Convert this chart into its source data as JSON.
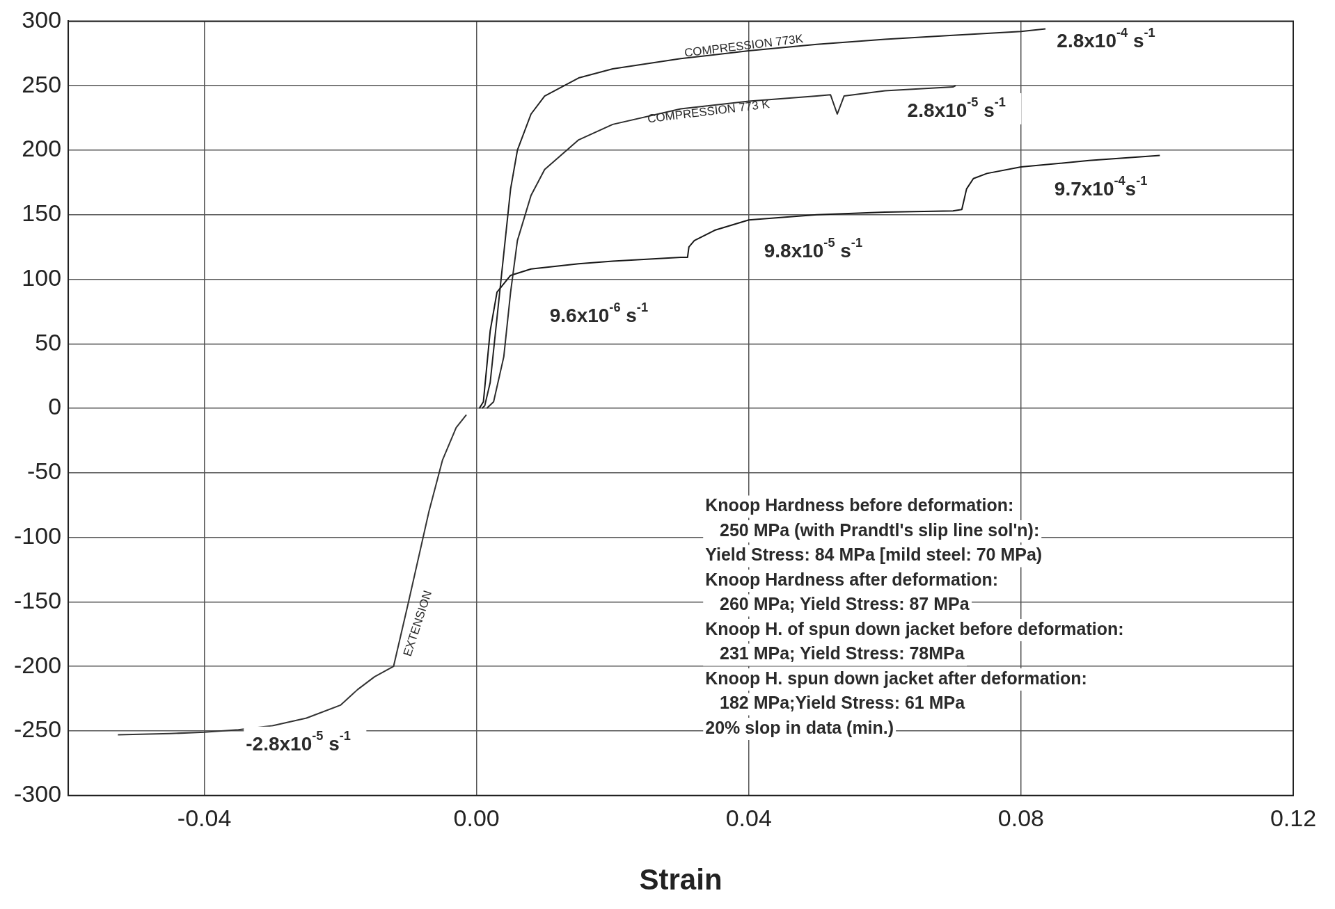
{
  "chart_data": {
    "type": "line",
    "xlabel": "Strain",
    "xlim": [
      -0.06,
      0.12
    ],
    "xticks": [
      {
        "value": -0.04,
        "label": "-0.04"
      },
      {
        "value": 0,
        "label": "0.00"
      },
      {
        "value": 0.04,
        "label": "0.04"
      },
      {
        "value": 0.08,
        "label": "0.08"
      },
      {
        "value": 0.12,
        "label": "0.12"
      }
    ],
    "ylim": [
      -300,
      300
    ],
    "yticks": [
      -300,
      -250,
      -200,
      -150,
      -100,
      -50,
      0,
      50,
      100,
      150,
      200,
      250,
      300
    ],
    "grid": true,
    "legend": false,
    "marker": "none",
    "line_style": "solid",
    "series": [
      {
        "color": "#222222",
        "x": [
          0.0008,
          0.0012,
          0.002,
          0.003,
          0.004,
          0.005,
          0.006,
          0.008,
          0.01,
          0.015,
          0.02,
          0.03,
          0.04,
          0.05,
          0.06,
          0.07,
          0.08,
          0.0836
        ],
        "values": [
          0,
          2,
          20,
          70,
          120,
          170,
          200,
          228,
          242,
          256,
          263,
          271,
          277,
          282,
          286,
          289,
          292,
          294
        ]
      },
      {
        "color": "#2c2c2c",
        "x": [
          0.0015,
          0.0025,
          0.004,
          0.005,
          0.006,
          0.008,
          0.01,
          0.015,
          0.02,
          0.03,
          0.04,
          0.05,
          0.052,
          0.053,
          0.054,
          0.06,
          0.07,
          0.0704
        ],
        "values": [
          0,
          5,
          40,
          90,
          130,
          165,
          185,
          208,
          220,
          232,
          238,
          242,
          243,
          228,
          242,
          246,
          249,
          250
        ]
      },
      {
        "color": "#181818",
        "x": [
          0.0004,
          0.001,
          0.002,
          0.003,
          0.005,
          0.008,
          0.015,
          0.02,
          0.03,
          0.031,
          0.0312,
          0.032,
          0.035,
          0.04,
          0.05,
          0.06,
          0.07,
          0.0713,
          0.072,
          0.073,
          0.075,
          0.08,
          0.09,
          0.1004
        ],
        "values": [
          0,
          5,
          60,
          90,
          103,
          108,
          112,
          114,
          117,
          117,
          125,
          130,
          138,
          146,
          150,
          152,
          153,
          154,
          170,
          178,
          182,
          187,
          192,
          196
        ]
      },
      {
        "color": "#333333",
        "x": [
          -0.0527,
          -0.045,
          -0.04,
          -0.035,
          -0.03,
          -0.025,
          -0.02,
          -0.0175,
          -0.015,
          -0.0122,
          -0.01,
          -0.007,
          -0.005,
          -0.003,
          -0.0015
        ],
        "values": [
          -253,
          -252,
          -251,
          -249,
          -246,
          -240,
          -230,
          -218,
          -208,
          -200,
          -150,
          -80,
          -40,
          -15,
          -5
        ]
      }
    ],
    "annotations": [
      "2.8x10$^{-4}$ s$^{-1}$",
      "2.8x10$^{-5}$ s$^{-1}$",
      "9.7x10$^{-4}$s$^{-1}$",
      "9.8x10$^{-5}$ s$^{-1}$",
      "9.6x10$^{-6}$ s$^{-1}$",
      "-2.8x10$^{-5}$ s$^{-1}$",
      "COMPRESSION 773K",
      "COMPRESSION 773 K",
      "EXTENSION",
      "Knoop Hardness before deformation:",
      "   250 MPa (with Prandtl's slip line sol'n):",
      "Yield Stress: 84 MPa [mild steel: 70 MPa)",
      "Knoop Hardness after deformation:",
      "   260 MPa; Yield Stress: 87 MPa",
      "Knoop H. of spun down jacket before deformation:",
      "   231 MPa; Yield Stress: 78MPa",
      "Knoop H. spun down jacket after deformation:",
      "   182 MPa;Yield Stress: 61 MPa",
      "20% slop in data (min.)"
    ]
  }
}
